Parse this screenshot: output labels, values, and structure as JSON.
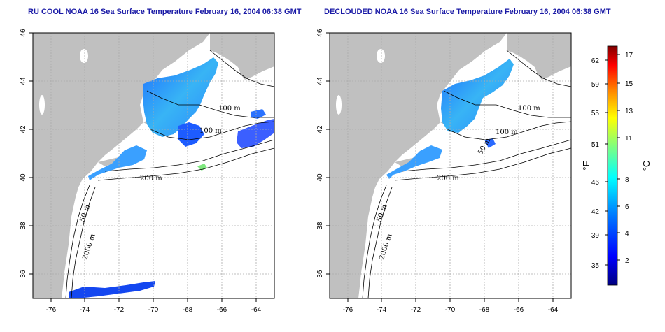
{
  "titles": {
    "left": "RU COOL NOAA 16 Sea Surface Temperature February 16, 2004 06:38 GMT",
    "right": "DECLOUDED NOAA 16 Sea Surface Temperature February 16, 2004 06:38 GMT"
  },
  "map": {
    "lon_ticks": [
      "-76",
      "-74",
      "-72",
      "-70",
      "-68",
      "-66",
      "-64"
    ],
    "lat_ticks": [
      "46",
      "44",
      "42",
      "40",
      "38",
      "36"
    ],
    "grid": "dotted",
    "land_color": "#c0c0c0",
    "ocean_color": "#ffffff",
    "contour_labels": {
      "c100a": "100 m",
      "c100b": "100 m",
      "c50a": "50 m",
      "c200": "200 m",
      "c50b": "50 m",
      "c2000": "2000 m"
    }
  },
  "colorbar": {
    "fahrenheit_ticks": [
      "62",
      "59",
      "55",
      "51",
      "46",
      "42",
      "39",
      "35"
    ],
    "celsius_ticks": [
      "17",
      "15",
      "13",
      "11",
      "8",
      "6",
      "4",
      "2"
    ],
    "fahrenheit_unit": "°F",
    "celsius_unit": "°C",
    "colors": [
      "#00007f",
      "#0000ff",
      "#007fff",
      "#00ffff",
      "#7fff7f",
      "#ffff00",
      "#ff7f00",
      "#ff0000",
      "#7f0000"
    ]
  }
}
